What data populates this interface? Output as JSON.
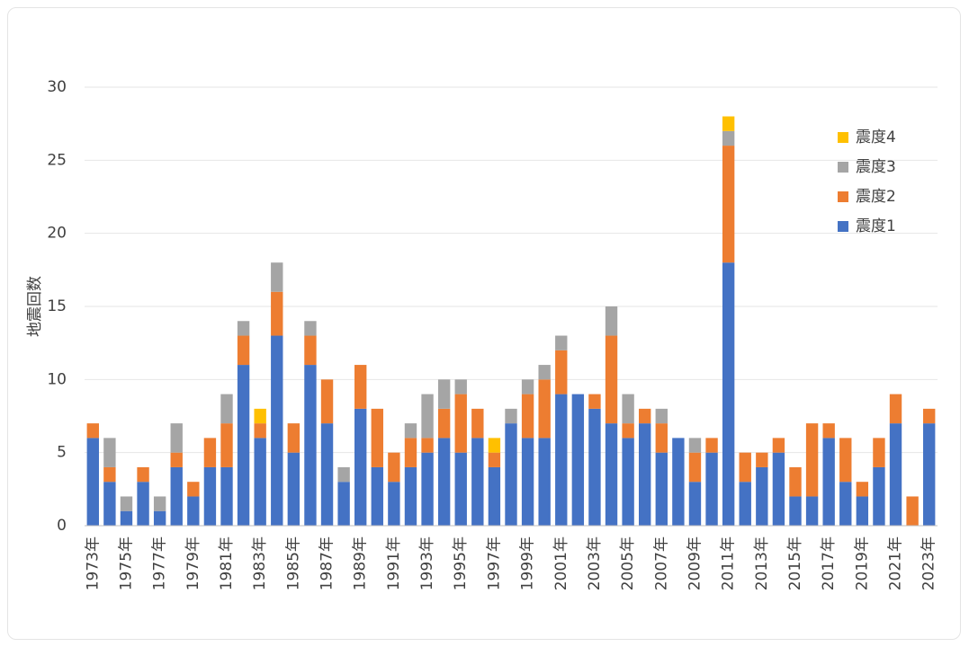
{
  "chart_data": {
    "type": "bar",
    "stacked": true,
    "title": "",
    "xlabel": "",
    "ylabel": "地震回数",
    "ylim": [
      0,
      30
    ],
    "yticks": [
      0,
      5,
      10,
      15,
      20,
      25,
      30
    ],
    "grid": true,
    "legend_position": "top-right",
    "categories": [
      "1973年",
      "1974年",
      "1975年",
      "1976年",
      "1977年",
      "1978年",
      "1979年",
      "1980年",
      "1981年",
      "1982年",
      "1983年",
      "1984年",
      "1985年",
      "1986年",
      "1987年",
      "1988年",
      "1989年",
      "1990年",
      "1991年",
      "1992年",
      "1993年",
      "1994年",
      "1995年",
      "1996年",
      "1997年",
      "1998年",
      "1999年",
      "2000年",
      "2001年",
      "2002年",
      "2003年",
      "2004年",
      "2005年",
      "2006年",
      "2007年",
      "2008年",
      "2009年",
      "2010年",
      "2011年",
      "2012年",
      "2013年",
      "2014年",
      "2015年",
      "2016年",
      "2017年",
      "2018年",
      "2019年",
      "2020年",
      "2021年",
      "2022年",
      "2023年"
    ],
    "tick_labels": [
      "1973年",
      "1975年",
      "1977年",
      "1979年",
      "1981年",
      "1983年",
      "1985年",
      "1987年",
      "1989年",
      "1991年",
      "1993年",
      "1995年",
      "1997年",
      "1999年",
      "2001年",
      "2003年",
      "2005年",
      "2007年",
      "2009年",
      "2011年",
      "2013年",
      "2015年",
      "2017年",
      "2019年",
      "2021年",
      "2023年"
    ],
    "series": [
      {
        "name": "震度1",
        "color": "#4472C4",
        "values": [
          6,
          3,
          1,
          3,
          1,
          4,
          2,
          4,
          4,
          11,
          6,
          13,
          5,
          11,
          7,
          3,
          8,
          4,
          3,
          4,
          5,
          6,
          5,
          6,
          4,
          7,
          6,
          6,
          9,
          9,
          8,
          7,
          6,
          7,
          5,
          6,
          3,
          5,
          18,
          3,
          4,
          5,
          2,
          2,
          6,
          3,
          2,
          4,
          7,
          0,
          7
        ]
      },
      {
        "name": "震度2",
        "color": "#ED7D31",
        "values": [
          1,
          1,
          0,
          1,
          0,
          1,
          1,
          2,
          3,
          2,
          1,
          3,
          2,
          2,
          3,
          0,
          3,
          4,
          2,
          2,
          1,
          2,
          4,
          2,
          1,
          0,
          3,
          4,
          3,
          0,
          1,
          6,
          1,
          1,
          2,
          0,
          2,
          1,
          8,
          2,
          1,
          1,
          2,
          5,
          1,
          3,
          1,
          2,
          2,
          2,
          1
        ]
      },
      {
        "name": "震度3",
        "color": "#A5A5A5",
        "values": [
          0,
          2,
          1,
          0,
          1,
          2,
          0,
          0,
          2,
          1,
          0,
          2,
          0,
          1,
          0,
          1,
          0,
          0,
          0,
          1,
          3,
          2,
          1,
          0,
          0,
          1,
          1,
          1,
          1,
          0,
          0,
          2,
          2,
          0,
          1,
          0,
          1,
          0,
          1,
          0,
          0,
          0,
          0,
          0,
          0,
          0,
          0,
          0,
          0,
          0,
          0
        ]
      },
      {
        "name": "震度4",
        "color": "#FFC000",
        "values": [
          0,
          0,
          0,
          0,
          0,
          0,
          0,
          0,
          0,
          0,
          1,
          0,
          0,
          0,
          0,
          0,
          0,
          0,
          0,
          0,
          0,
          0,
          0,
          0,
          1,
          0,
          0,
          0,
          0,
          0,
          0,
          0,
          0,
          0,
          0,
          0,
          0,
          0,
          1,
          0,
          0,
          0,
          0,
          0,
          0,
          0,
          0,
          0,
          0,
          0,
          0
        ]
      }
    ],
    "legend_order": [
      "震度4",
      "震度3",
      "震度2",
      "震度1"
    ]
  }
}
